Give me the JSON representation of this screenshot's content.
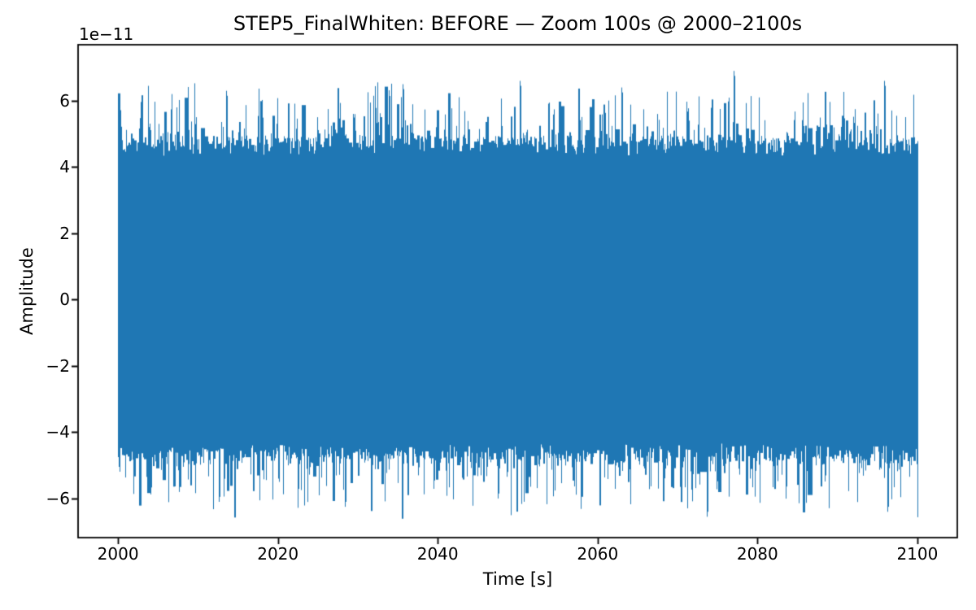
{
  "chart_data": {
    "type": "line",
    "title": "STEP5_FinalWhiten: BEFORE — Zoom 100s @ 2000–2100s",
    "xlabel": "Time [s]",
    "ylabel": "Amplitude",
    "y_offset_text": "1e−11",
    "x_ticks": [
      2000,
      2020,
      2040,
      2060,
      2080,
      2100
    ],
    "x_tick_labels": [
      "2000",
      "2020",
      "2040",
      "2060",
      "2080",
      "2100"
    ],
    "y_ticks": [
      6,
      4,
      2,
      0,
      -2,
      -4,
      -6
    ],
    "y_tick_labels": [
      "6",
      "4",
      "2",
      "0",
      "−2",
      "−4",
      "−6"
    ],
    "xlim": [
      1995,
      2105
    ],
    "ylim": [
      -7.18,
      7.69
    ],
    "grid": false,
    "legend": null,
    "background_color": "#ffffff",
    "axes_color": "#000000",
    "line_color": "#1f77b4",
    "signal": {
      "kind": "dense noise-like strain time series (input before whitening)",
      "t_start": 2000,
      "t_end": 2100,
      "amplitude_scale": 1e-11,
      "solid_core": [
        -4.35,
        4.35
      ],
      "typical_envelope": [
        -5.3,
        5.3
      ],
      "extreme_envelope": [
        -6.55,
        6.9
      ],
      "seed": 20771337,
      "spike_probability": 0.42,
      "peaks": [
        {
          "t": 2013.5,
          "value": 6.3
        },
        {
          "t": 2035.6,
          "value": 6.5
        },
        {
          "t": 2050.3,
          "value": 6.6
        },
        {
          "t": 2063.0,
          "value": 6.4
        },
        {
          "t": 2077.0,
          "value": 6.9
        },
        {
          "t": 2095.8,
          "value": 6.6
        },
        {
          "t": 2012.6,
          "value": -6.1
        },
        {
          "t": 2028.4,
          "value": -6.25
        },
        {
          "t": 2047.5,
          "value": -6.0
        },
        {
          "t": 2073.7,
          "value": -6.55
        },
        {
          "t": 2096.2,
          "value": -6.4
        }
      ]
    }
  }
}
